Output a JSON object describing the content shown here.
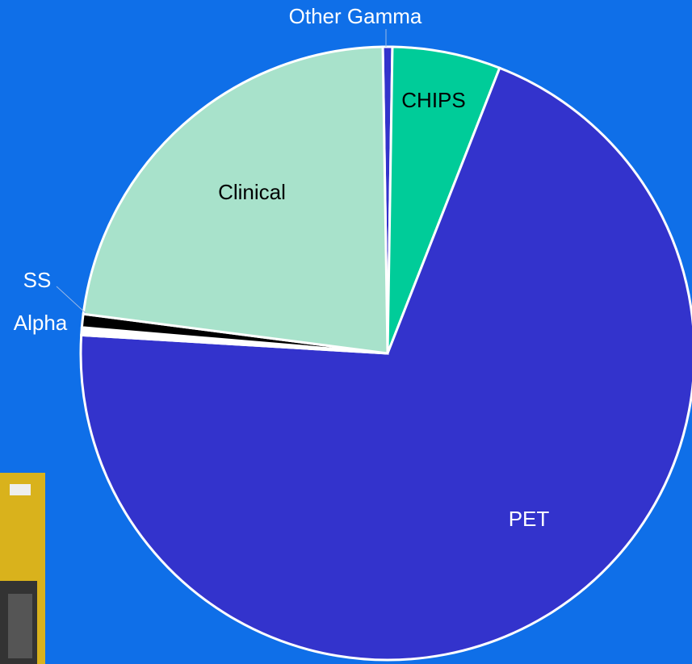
{
  "chart_data": {
    "type": "pie",
    "categories": [
      "Other Gamma",
      "CHIPS",
      "PET",
      "Alpha",
      "SS",
      "Clinical"
    ],
    "values": [
      0.5,
      5.7,
      70,
      0.4,
      0.7,
      22.7
    ],
    "colors": [
      "#3333cc",
      "#00cc99",
      "#3333cc",
      "#ffffff",
      "#000000",
      "#a8e2cb"
    ]
  }
}
